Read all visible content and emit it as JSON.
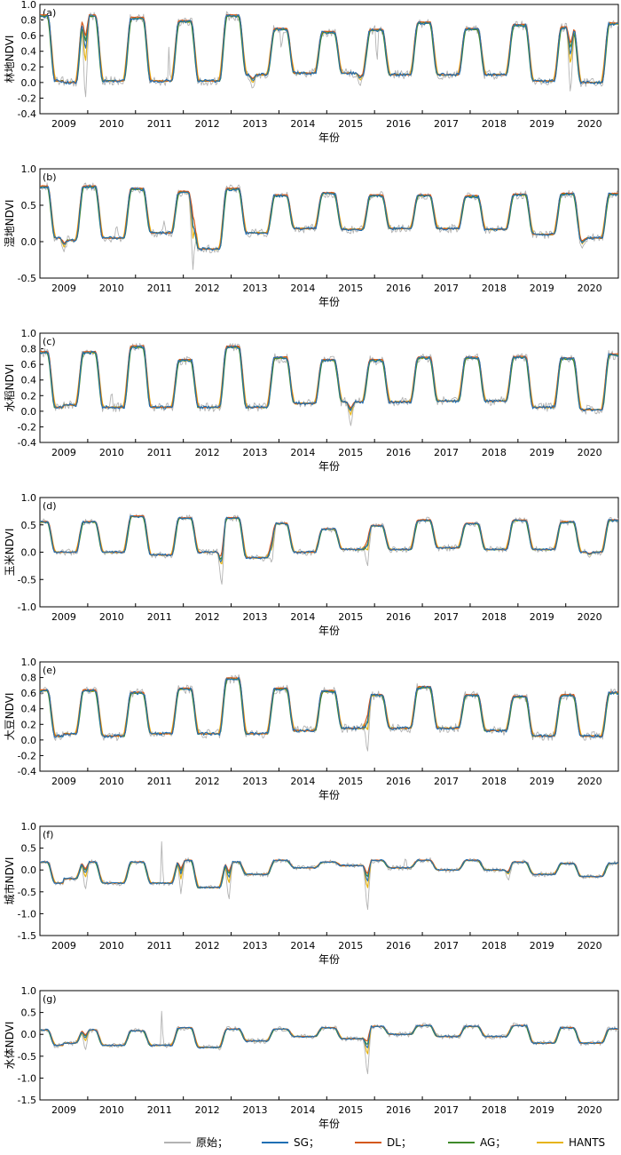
{
  "xlabel": "年份",
  "legend": {
    "placement": "bottom-center",
    "items": [
      {
        "label": "原始；",
        "color": "#b3b3b3"
      },
      {
        "label": "SG；",
        "color": "#1f6fb4"
      },
      {
        "label": "DL；",
        "color": "#d4581a"
      },
      {
        "label": "AG；",
        "color": "#3f8a2a"
      },
      {
        "label": "HANTS",
        "color": "#e6b417"
      }
    ]
  },
  "chart_data": [
    {
      "panel": "(a)",
      "type": "line",
      "ylabel": "林地NDVI",
      "xlabel": "年份",
      "x_ticks": [
        "2009",
        "2010",
        "2011",
        "2012",
        "2013",
        "2014",
        "2015",
        "2016",
        "2017",
        "2018",
        "2019",
        "2020"
      ],
      "ylim": [
        -0.4,
        1.0
      ],
      "yticks": [
        "-0.4",
        "-0.2",
        "0.0",
        "0.2",
        "0.4",
        "0.6",
        "0.8",
        "1.0"
      ],
      "grid": false,
      "summer_peak": [
        0.85,
        0.82,
        0.78,
        0.85,
        0.68,
        0.64,
        0.67,
        0.76,
        0.68,
        0.73,
        0.7,
        0.75
      ],
      "winter_base": [
        0.0,
        0.02,
        0.02,
        0.02,
        0.1,
        0.12,
        0.12,
        0.1,
        0.1,
        0.1,
        0.02,
        0.0
      ],
      "dips": [
        [
          2009.45,
          -0.3
        ],
        [
          2012.95,
          -0.1
        ],
        [
          2015.2,
          -0.05
        ],
        [
          2019.6,
          -0.2
        ]
      ],
      "spikes": [
        [
          2011.2,
          0.5
        ],
        [
          2013.55,
          0.35
        ],
        [
          2015.55,
          0.15
        ]
      ]
    },
    {
      "panel": "(b)",
      "type": "line",
      "ylabel": "湿地NDVI",
      "xlabel": "年份",
      "x_ticks": [
        "2009",
        "2010",
        "2011",
        "2012",
        "2013",
        "2014",
        "2015",
        "2016",
        "2017",
        "2018",
        "2019",
        "2020"
      ],
      "ylim": [
        -0.5,
        1.0
      ],
      "yticks": [
        "-0.5",
        "0.0",
        "0.5",
        "1.0"
      ],
      "grid": false,
      "summer_peak": [
        0.75,
        0.72,
        0.68,
        0.72,
        0.63,
        0.66,
        0.63,
        0.63,
        0.62,
        0.64,
        0.65,
        0.65
      ],
      "winter_base": [
        0.02,
        0.05,
        0.12,
        -0.1,
        0.12,
        0.18,
        0.17,
        0.18,
        0.18,
        0.17,
        0.1,
        0.05
      ],
      "dips": [
        [
          2009.0,
          -0.15
        ],
        [
          2011.7,
          -0.4
        ],
        [
          2019.85,
          -0.1
        ]
      ],
      "spikes": [
        [
          2010.1,
          0.3
        ],
        [
          2011.1,
          0.3
        ]
      ]
    },
    {
      "panel": "(c)",
      "type": "line",
      "ylabel": "水稻NDVI",
      "xlabel": "年份",
      "x_ticks": [
        "2009",
        "2010",
        "2011",
        "2012",
        "2013",
        "2014",
        "2015",
        "2016",
        "2017",
        "2018",
        "2019",
        "2020"
      ],
      "ylim": [
        -0.4,
        1.0
      ],
      "yticks": [
        "-0.4",
        "-0.2",
        "0.0",
        "0.2",
        "0.4",
        "0.6",
        "0.8",
        "1.0"
      ],
      "grid": false,
      "summer_peak": [
        0.75,
        0.82,
        0.65,
        0.82,
        0.68,
        0.65,
        0.65,
        0.68,
        0.68,
        0.69,
        0.67,
        0.72
      ],
      "winter_base": [
        0.08,
        0.05,
        0.05,
        0.05,
        0.05,
        0.1,
        0.12,
        0.12,
        0.13,
        0.13,
        0.05,
        0.02
      ],
      "dips": [
        [
          2015.0,
          -0.2
        ]
      ],
      "spikes": [
        [
          2010.0,
          0.3
        ]
      ]
    },
    {
      "panel": "(d)",
      "type": "line",
      "ylabel": "玉米NDVI",
      "xlabel": "年份",
      "x_ticks": [
        "2009",
        "2010",
        "2011",
        "2012",
        "2013",
        "2014",
        "2015",
        "2016",
        "2017",
        "2018",
        "2019",
        "2020"
      ],
      "ylim": [
        -1.0,
        1.0
      ],
      "yticks": [
        "-1.0",
        "-0.5",
        "0.0",
        "0.5",
        "1.0"
      ],
      "grid": false,
      "summer_peak": [
        0.55,
        0.65,
        0.62,
        0.62,
        0.52,
        0.42,
        0.48,
        0.58,
        0.52,
        0.58,
        0.55,
        0.58
      ],
      "winter_base": [
        0.0,
        0.0,
        -0.05,
        0.0,
        -0.1,
        0.0,
        0.05,
        0.05,
        0.08,
        0.05,
        0.05,
        0.0
      ],
      "dips": [
        [
          2012.3,
          -0.65
        ],
        [
          2013.35,
          -0.25
        ],
        [
          2015.35,
          -0.3
        ],
        [
          2020.0,
          -0.1
        ]
      ],
      "spikes": []
    },
    {
      "panel": "(e)",
      "type": "line",
      "ylabel": "大豆NDVI",
      "xlabel": "年份",
      "x_ticks": [
        "2009",
        "2010",
        "2011",
        "2012",
        "2013",
        "2014",
        "2015",
        "2016",
        "2017",
        "2018",
        "2019",
        "2020"
      ],
      "ylim": [
        -0.4,
        1.0
      ],
      "yticks": [
        "-0.4",
        "-0.2",
        "0.0",
        "0.2",
        "0.4",
        "0.6",
        "0.8",
        "1.0"
      ],
      "grid": false,
      "summer_peak": [
        0.63,
        0.6,
        0.65,
        0.78,
        0.65,
        0.62,
        0.57,
        0.67,
        0.57,
        0.55,
        0.57,
        0.6
      ],
      "winter_base": [
        0.08,
        0.05,
        0.08,
        0.08,
        0.08,
        0.12,
        0.15,
        0.15,
        0.15,
        0.12,
        0.05,
        0.05
      ],
      "dips": [
        [
          2015.35,
          -0.2
        ]
      ],
      "spikes": []
    },
    {
      "panel": "(f)",
      "type": "line",
      "ylabel": "城市NDVI",
      "xlabel": "年份",
      "x_ticks": [
        "2009",
        "2010",
        "2011",
        "2012",
        "2013",
        "2014",
        "2015",
        "2016",
        "2017",
        "2018",
        "2019",
        "2020"
      ],
      "ylim": [
        -1.5,
        1.0
      ],
      "yticks": [
        "-1.5",
        "-1.0",
        "-0.5",
        "0.0",
        "0.5",
        "1.0"
      ],
      "grid": false,
      "summer_peak": [
        0.18,
        0.18,
        0.22,
        0.18,
        0.22,
        0.18,
        0.22,
        0.22,
        0.22,
        0.18,
        0.15,
        0.15
      ],
      "winter_base": [
        -0.2,
        -0.3,
        -0.3,
        -0.4,
        -0.1,
        0.05,
        0.1,
        0.05,
        0.0,
        0.0,
        -0.1,
        -0.15
      ],
      "dips": [
        [
          2009.45,
          -0.5
        ],
        [
          2011.45,
          -0.55
        ],
        [
          2012.45,
          -0.75
        ],
        [
          2015.35,
          -1.0
        ],
        [
          2018.3,
          -0.25
        ]
      ],
      "spikes": [
        [
          2011.05,
          0.8
        ],
        [
          2016.15,
          0.35
        ]
      ]
    },
    {
      "panel": "(g)",
      "type": "line",
      "ylabel": "水体NDVI",
      "xlabel": "年份",
      "x_ticks": [
        "2009",
        "2010",
        "2011",
        "2012",
        "2013",
        "2014",
        "2015",
        "2016",
        "2017",
        "2018",
        "2019",
        "2020"
      ],
      "ylim": [
        -1.5,
        1.0
      ],
      "yticks": [
        "-1.5",
        "-1.0",
        "-0.5",
        "0.0",
        "0.5",
        "1.0"
      ],
      "grid": false,
      "summer_peak": [
        0.1,
        0.08,
        0.15,
        0.12,
        0.12,
        0.15,
        0.18,
        0.2,
        0.18,
        0.2,
        0.15,
        0.12
      ],
      "winter_base": [
        -0.2,
        -0.25,
        -0.25,
        -0.3,
        -0.15,
        -0.05,
        -0.1,
        0.0,
        -0.05,
        -0.05,
        -0.2,
        -0.2
      ],
      "dips": [
        [
          2009.45,
          -0.4
        ],
        [
          2015.35,
          -1.0
        ]
      ],
      "spikes": [
        [
          2011.05,
          0.65
        ]
      ]
    }
  ]
}
